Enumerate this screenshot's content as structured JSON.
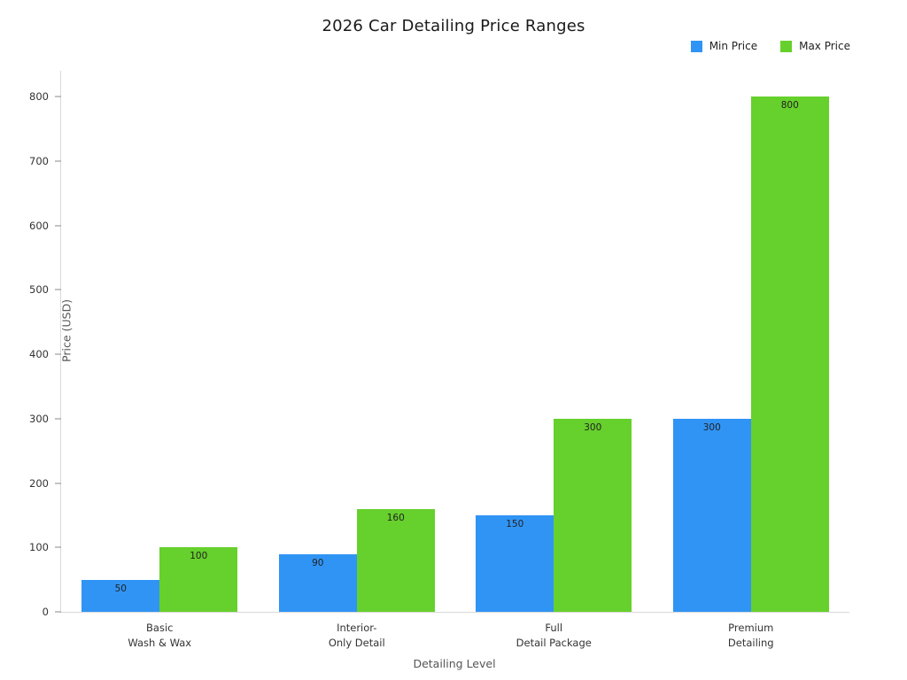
{
  "chart_data": {
    "type": "bar",
    "title": "2026 Car Detailing Price Ranges",
    "xlabel": "Detailing Level",
    "ylabel": "Price (USD)",
    "categories": [
      [
        "Basic",
        "Wash & Wax"
      ],
      [
        "Interior-",
        "Only Detail"
      ],
      [
        "Full",
        "Detail Package"
      ],
      [
        "Premium",
        "Detailing"
      ]
    ],
    "series": [
      {
        "name": "Min Price",
        "color": "#3094f5",
        "values": [
          50,
          90,
          150,
          300
        ]
      },
      {
        "name": "Max Price",
        "color": "#66d02c",
        "values": [
          100,
          160,
          300,
          800
        ]
      }
    ],
    "ylim": [
      0,
      840
    ],
    "yticks": [
      0,
      100,
      200,
      300,
      400,
      500,
      600,
      700,
      800
    ],
    "grid": false,
    "legend_position": "top-right"
  }
}
